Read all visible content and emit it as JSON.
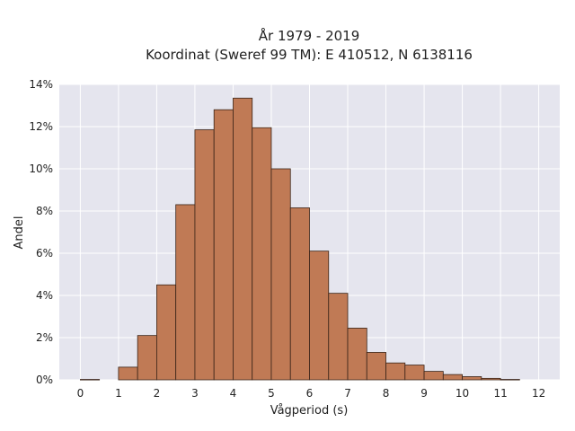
{
  "chart_data": {
    "type": "bar",
    "title": "År 1979 - 2019",
    "subtitle": "Koordinat (Sweref 99 TM): E 410512, N 6138116",
    "xlabel": "Vågperiod (s)",
    "ylabel": "Andel",
    "x_ticks": [
      0,
      1,
      2,
      3,
      4,
      5,
      6,
      7,
      8,
      9,
      10,
      11,
      12
    ],
    "x_tick_labels": [
      "0",
      "1",
      "2",
      "3",
      "4",
      "5",
      "6",
      "7",
      "8",
      "9",
      "10",
      "11",
      "12"
    ],
    "y_ticks": [
      0,
      2,
      4,
      6,
      8,
      10,
      12,
      14
    ],
    "y_tick_labels": [
      "0%",
      "2%",
      "4%",
      "6%",
      "8%",
      "10%",
      "12%",
      "14%"
    ],
    "xlim": [
      -0.55,
      12.55
    ],
    "ylim": [
      0,
      14
    ],
    "y_unit": "%",
    "bin_width": 0.5,
    "bins": [
      {
        "start": 0.0,
        "value": 0.02
      },
      {
        "start": 1.0,
        "value": 0.6
      },
      {
        "start": 1.5,
        "value": 2.1
      },
      {
        "start": 2.0,
        "value": 4.5
      },
      {
        "start": 2.5,
        "value": 8.3
      },
      {
        "start": 3.0,
        "value": 11.85
      },
      {
        "start": 3.5,
        "value": 12.8
      },
      {
        "start": 4.0,
        "value": 13.35
      },
      {
        "start": 4.5,
        "value": 11.95
      },
      {
        "start": 5.0,
        "value": 10.0
      },
      {
        "start": 5.5,
        "value": 8.15
      },
      {
        "start": 6.0,
        "value": 6.1
      },
      {
        "start": 6.5,
        "value": 4.1
      },
      {
        "start": 7.0,
        "value": 2.45
      },
      {
        "start": 7.5,
        "value": 1.3
      },
      {
        "start": 8.0,
        "value": 0.8
      },
      {
        "start": 8.5,
        "value": 0.7
      },
      {
        "start": 9.0,
        "value": 0.4
      },
      {
        "start": 9.5,
        "value": 0.25
      },
      {
        "start": 10.0,
        "value": 0.15
      },
      {
        "start": 10.5,
        "value": 0.07
      },
      {
        "start": 11.0,
        "value": 0.02
      }
    ],
    "grid": true,
    "bar_color": "#c07a55",
    "bar_edge_color": "#3a2418",
    "plot_background": "#e5e5ee",
    "grid_color": "#ffffff"
  }
}
